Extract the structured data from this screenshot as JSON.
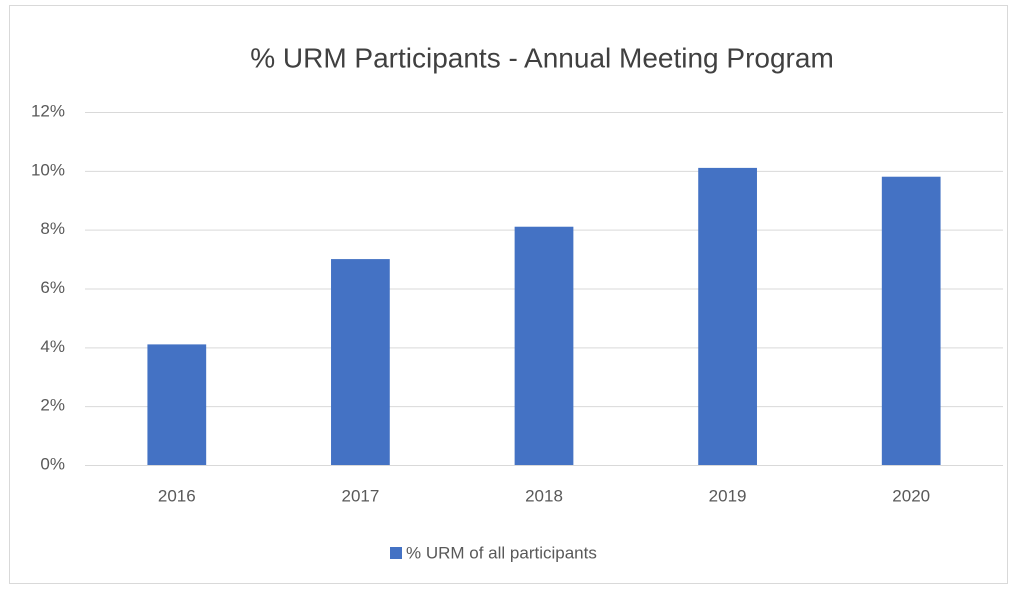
{
  "chart_data": {
    "type": "bar",
    "title": "% URM Participants - Annual Meeting Program",
    "categories": [
      "2016",
      "2017",
      "2018",
      "2019",
      "2020"
    ],
    "series": [
      {
        "name": "% URM of all participants",
        "color": "#4472c4",
        "values": [
          4.1,
          7.0,
          8.1,
          10.1,
          9.8
        ]
      }
    ],
    "ylim": [
      0,
      12
    ],
    "yticks": [
      {
        "value": 0,
        "label": "0%"
      },
      {
        "value": 2,
        "label": "2%"
      },
      {
        "value": 4,
        "label": "4%"
      },
      {
        "value": 6,
        "label": "6%"
      },
      {
        "value": 8,
        "label": "8%"
      },
      {
        "value": 10,
        "label": "10%"
      },
      {
        "value": 12,
        "label": "12%"
      }
    ],
    "grid": true,
    "legend": "bottom"
  }
}
